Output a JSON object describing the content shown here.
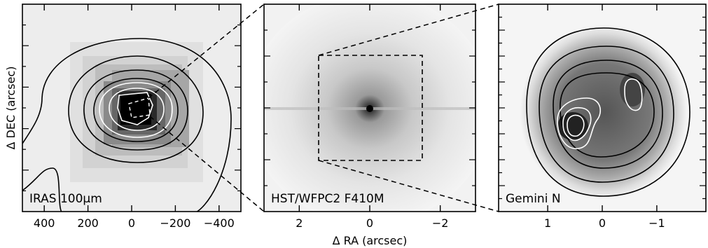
{
  "figure": {
    "y_axis_label": "Δ DEC (arcsec)",
    "x_axis_label": "Δ RA (arcsec)"
  },
  "panels": [
    {
      "id": "iras",
      "label": "IRAS 100μm",
      "x_ticks": [
        "400",
        "200",
        "0",
        "−200",
        "−400"
      ],
      "x_tick_values": [
        400,
        200,
        0,
        -200,
        -400
      ],
      "x_range": [
        500,
        -500
      ]
    },
    {
      "id": "hst",
      "label": "HST/WFPC2 F410M",
      "x_ticks": [
        "2",
        "0",
        "−2"
      ],
      "x_tick_values": [
        2,
        0,
        -2
      ],
      "x_range": [
        3,
        -3
      ]
    },
    {
      "id": "gemini",
      "label": "Gemini N",
      "x_ticks": [
        "1",
        "0",
        "−1"
      ],
      "x_tick_values": [
        1,
        0,
        -1
      ],
      "x_range": [
        1.9,
        -1.9
      ]
    }
  ],
  "colors": {
    "frame": "#000000",
    "contour_dark": "#000000",
    "contour_light": "#ffffff"
  }
}
